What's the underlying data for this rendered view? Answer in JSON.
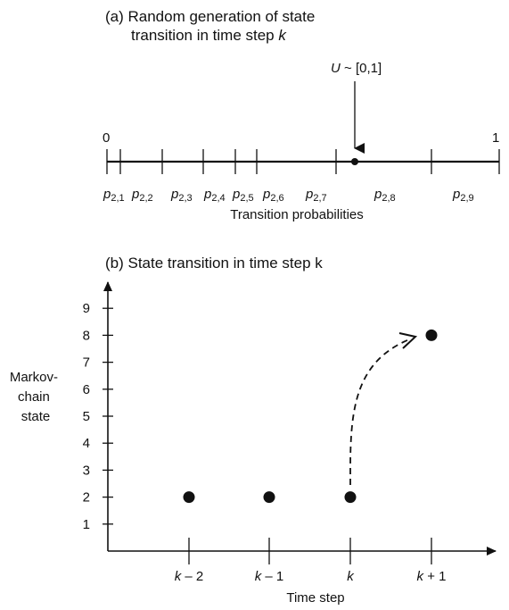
{
  "panel_a": {
    "title_line1": "(a) Random generation of state",
    "title_line2_prefix": "transition in time step ",
    "title_line2_var": "k",
    "axis_start": "0",
    "axis_end": "1",
    "u_var": "U",
    "u_rest": " ~ [0,1]",
    "probability_symbol": "p",
    "probabilities": [
      "2,1",
      "2,2",
      "2,3",
      "2,4",
      "2,5",
      "2,6",
      "2,7",
      "2,8",
      "2,9"
    ],
    "axis_caption": "Transition probabilities"
  },
  "panel_b": {
    "title": "(b) State transition in time step k",
    "y_title_lines": [
      "Markov-",
      "chain",
      "state"
    ],
    "x_title": "Time step",
    "y_ticks": [
      "1",
      "2",
      "3",
      "4",
      "5",
      "6",
      "7",
      "8",
      "9"
    ],
    "x_ticks": [
      {
        "var": "k",
        "suffix": " – 2"
      },
      {
        "var": "k",
        "suffix": " – 1"
      },
      {
        "var": "k",
        "suffix": ""
      },
      {
        "var": "k",
        "suffix": " + 1"
      }
    ]
  },
  "chart_data": {
    "type": "scatter",
    "title": "(b) State transition in time step k",
    "xlabel": "Time step",
    "ylabel": "Markov-chain state",
    "x": [
      "k – 2",
      "k – 1",
      "k",
      "k + 1"
    ],
    "y": [
      2,
      2,
      2,
      8
    ],
    "ylim": [
      0,
      9
    ],
    "grid": false,
    "annotations": [
      {
        "type": "dashed-curved-arrow",
        "from": [
          "k",
          2
        ],
        "to": [
          "k + 1",
          8
        ]
      }
    ]
  }
}
